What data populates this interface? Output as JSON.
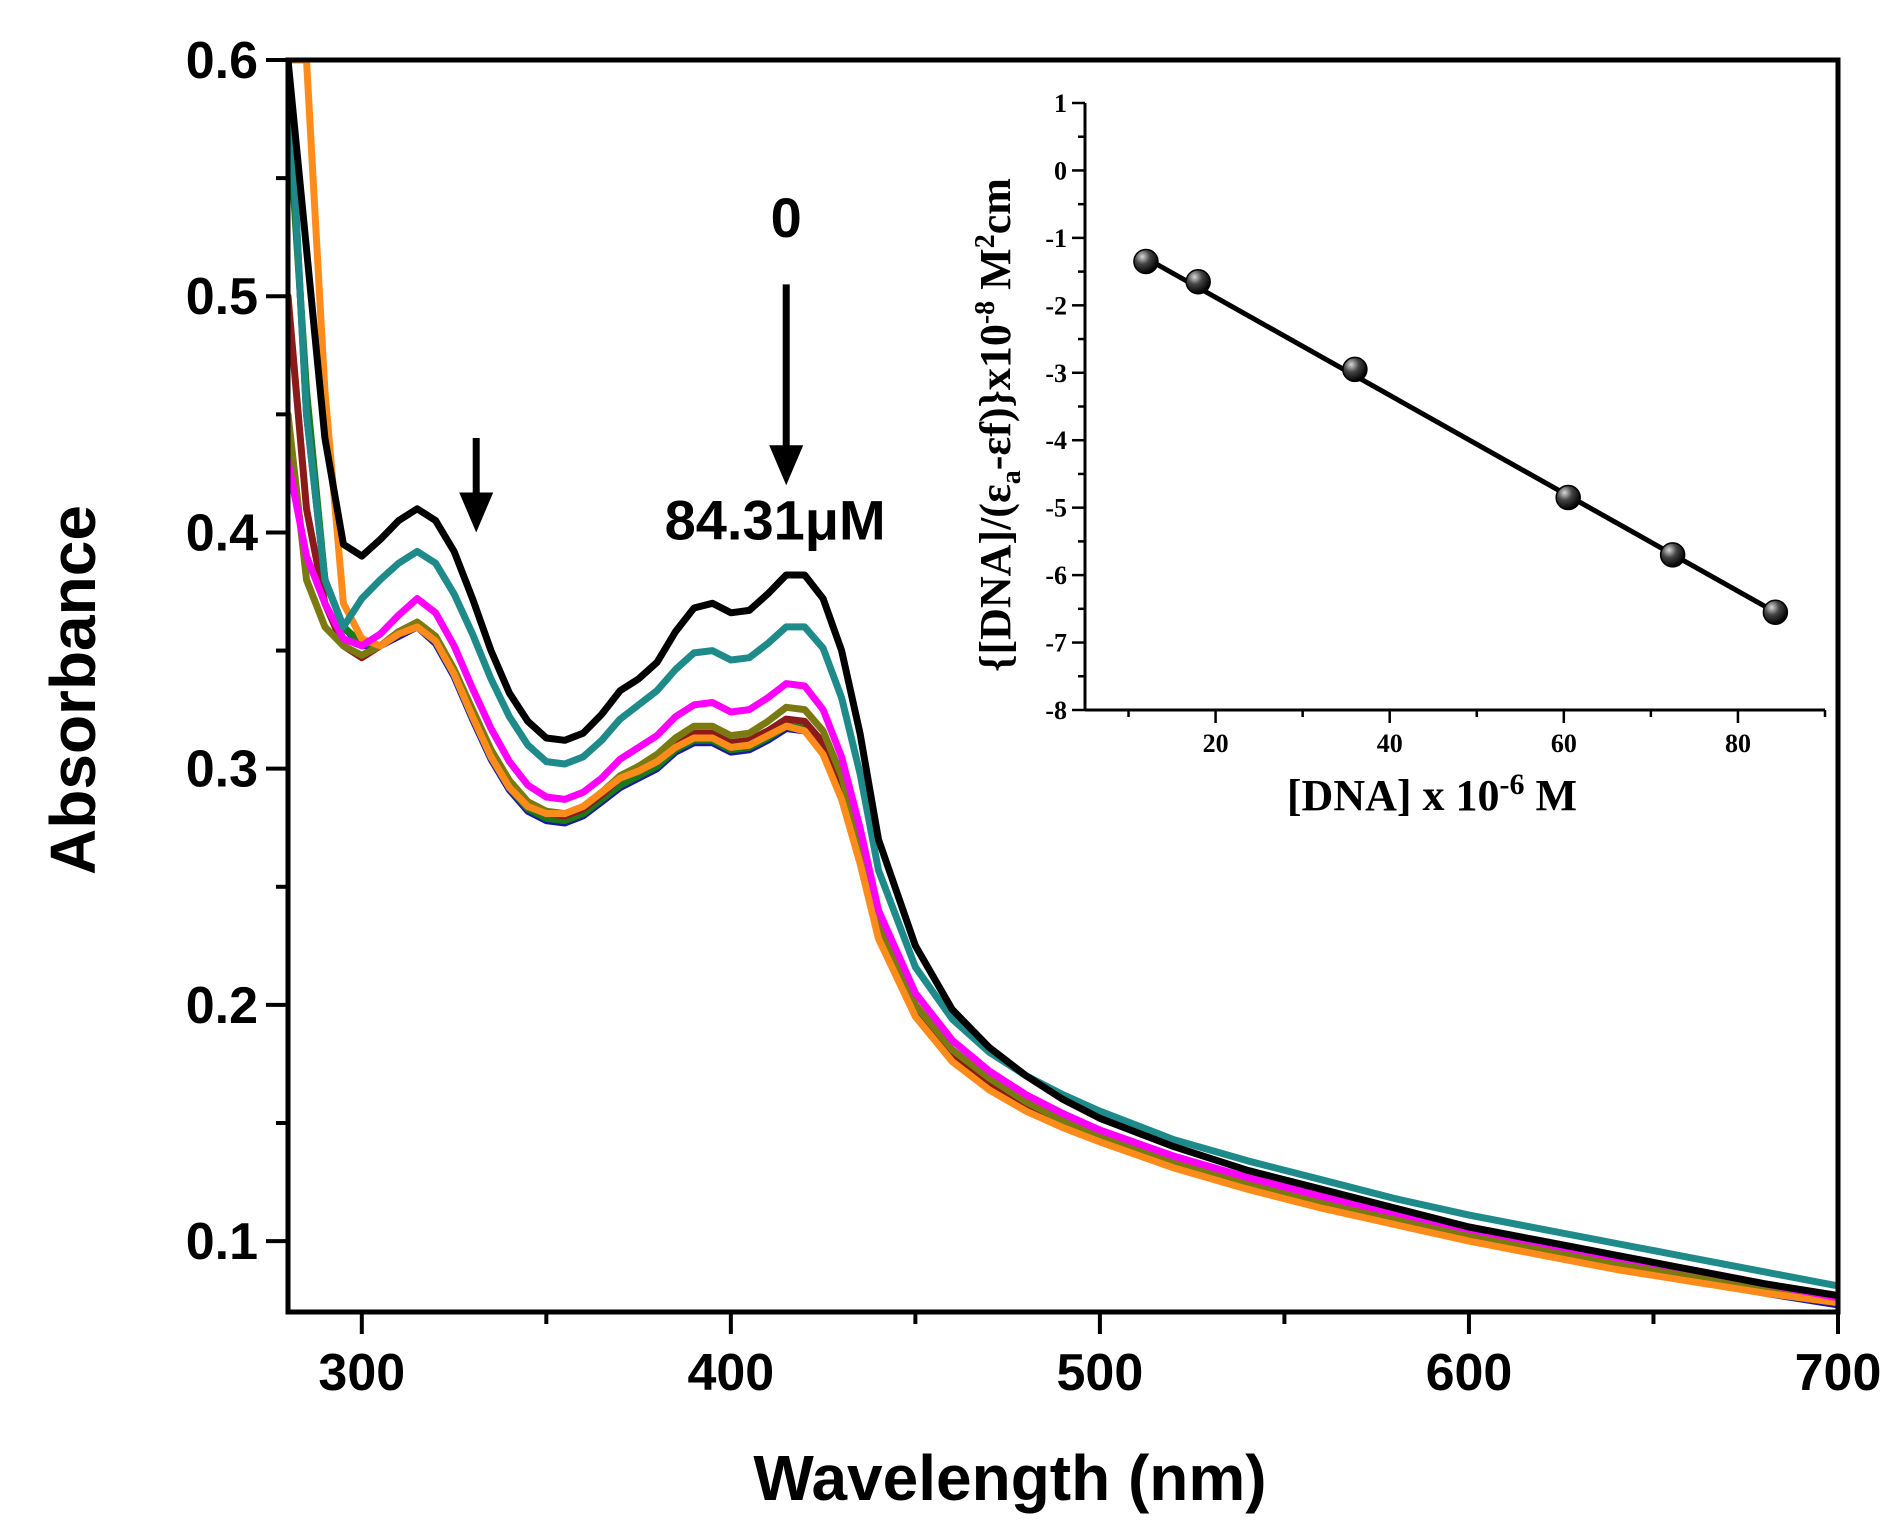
{
  "chart_data": [
    {
      "type": "line",
      "title": "",
      "xlabel": "Wavelength (nm)",
      "ylabel": "Absorbance",
      "xlim": [
        280,
        700
      ],
      "ylim": [
        0.07,
        0.6
      ],
      "xticks": [
        "300",
        "400",
        "500",
        "600",
        "700"
      ],
      "yticks": [
        "0.1",
        "0.2",
        "0.3",
        "0.4",
        "0.5",
        "0.6"
      ],
      "grid": false,
      "x": [
        280,
        285,
        290,
        295,
        300,
        305,
        310,
        315,
        320,
        325,
        330,
        335,
        340,
        345,
        350,
        355,
        360,
        365,
        370,
        375,
        380,
        385,
        390,
        395,
        400,
        405,
        410,
        415,
        420,
        425,
        430,
        435,
        440,
        450,
        460,
        470,
        480,
        490,
        500,
        520,
        540,
        560,
        580,
        600,
        620,
        640,
        660,
        680,
        700
      ],
      "series": [
        {
          "name": "0 μM",
          "color": "#000000",
          "values": [
            0.6,
            0.52,
            0.44,
            0.395,
            0.39,
            0.397,
            0.405,
            0.41,
            0.405,
            0.392,
            0.372,
            0.35,
            0.332,
            0.32,
            0.313,
            0.312,
            0.315,
            0.323,
            0.333,
            0.338,
            0.345,
            0.358,
            0.368,
            0.37,
            0.366,
            0.367,
            0.374,
            0.382,
            0.382,
            0.372,
            0.35,
            0.315,
            0.27,
            0.225,
            0.198,
            0.182,
            0.17,
            0.16,
            0.152,
            0.14,
            0.13,
            0.122,
            0.114,
            0.106,
            0.1,
            0.094,
            0.088,
            0.082,
            0.077
          ]
        },
        {
          "name": "teal",
          "color": "#1f8a8a",
          "values": [
            0.6,
            0.45,
            0.38,
            0.36,
            0.372,
            0.38,
            0.387,
            0.392,
            0.387,
            0.374,
            0.357,
            0.338,
            0.322,
            0.31,
            0.303,
            0.302,
            0.305,
            0.312,
            0.321,
            0.327,
            0.333,
            0.342,
            0.349,
            0.35,
            0.346,
            0.347,
            0.353,
            0.36,
            0.36,
            0.351,
            0.33,
            0.298,
            0.257,
            0.216,
            0.194,
            0.18,
            0.17,
            0.162,
            0.155,
            0.143,
            0.134,
            0.126,
            0.118,
            0.111,
            0.105,
            0.099,
            0.093,
            0.087,
            0.081
          ]
        },
        {
          "name": "magenta",
          "color": "#ff00ff",
          "values": [
            0.43,
            0.39,
            0.37,
            0.355,
            0.352,
            0.357,
            0.365,
            0.372,
            0.366,
            0.352,
            0.334,
            0.317,
            0.303,
            0.293,
            0.288,
            0.287,
            0.29,
            0.296,
            0.304,
            0.309,
            0.314,
            0.322,
            0.327,
            0.328,
            0.324,
            0.325,
            0.33,
            0.336,
            0.335,
            0.325,
            0.305,
            0.275,
            0.24,
            0.205,
            0.185,
            0.172,
            0.162,
            0.154,
            0.147,
            0.136,
            0.127,
            0.119,
            0.112,
            0.105,
            0.099,
            0.093,
            0.088,
            0.082,
            0.076
          ]
        },
        {
          "name": "olive",
          "color": "#7a7a10",
          "values": [
            0.45,
            0.38,
            0.36,
            0.352,
            0.348,
            0.352,
            0.358,
            0.362,
            0.356,
            0.342,
            0.325,
            0.308,
            0.295,
            0.286,
            0.282,
            0.281,
            0.284,
            0.29,
            0.297,
            0.301,
            0.306,
            0.313,
            0.318,
            0.318,
            0.314,
            0.315,
            0.32,
            0.326,
            0.325,
            0.316,
            0.297,
            0.268,
            0.235,
            0.2,
            0.181,
            0.169,
            0.159,
            0.151,
            0.145,
            0.134,
            0.125,
            0.117,
            0.11,
            0.103,
            0.097,
            0.091,
            0.086,
            0.08,
            0.075
          ]
        },
        {
          "name": "green",
          "color": "#1a7a1a",
          "values": [
            0.58,
            0.46,
            0.38,
            0.36,
            0.353,
            0.352,
            0.357,
            0.36,
            0.354,
            0.34,
            0.322,
            0.305,
            0.292,
            0.283,
            0.279,
            0.278,
            0.281,
            0.287,
            0.293,
            0.297,
            0.301,
            0.308,
            0.312,
            0.312,
            0.308,
            0.309,
            0.313,
            0.318,
            0.317,
            0.308,
            0.29,
            0.262,
            0.23,
            0.197,
            0.178,
            0.166,
            0.157,
            0.15,
            0.144,
            0.133,
            0.124,
            0.116,
            0.109,
            0.102,
            0.096,
            0.09,
            0.085,
            0.079,
            0.074
          ]
        },
        {
          "name": "blue",
          "color": "#1a1aa0",
          "values": [
            0.6,
            0.45,
            0.38,
            0.36,
            0.352,
            0.352,
            0.356,
            0.36,
            0.353,
            0.339,
            0.321,
            0.304,
            0.291,
            0.282,
            0.278,
            0.277,
            0.28,
            0.286,
            0.292,
            0.296,
            0.3,
            0.307,
            0.311,
            0.311,
            0.307,
            0.308,
            0.312,
            0.317,
            0.316,
            0.307,
            0.289,
            0.261,
            0.229,
            0.196,
            0.177,
            0.165,
            0.156,
            0.149,
            0.143,
            0.132,
            0.123,
            0.115,
            0.108,
            0.101,
            0.095,
            0.089,
            0.084,
            0.078,
            0.073
          ]
        },
        {
          "name": "maroon",
          "color": "#8b1a1a",
          "values": [
            0.5,
            0.41,
            0.37,
            0.352,
            0.347,
            0.352,
            0.358,
            0.362,
            0.356,
            0.342,
            0.324,
            0.307,
            0.294,
            0.285,
            0.281,
            0.28,
            0.283,
            0.289,
            0.296,
            0.3,
            0.305,
            0.311,
            0.315,
            0.315,
            0.311,
            0.312,
            0.316,
            0.321,
            0.32,
            0.311,
            0.292,
            0.264,
            0.232,
            0.198,
            0.179,
            0.167,
            0.158,
            0.15,
            0.144,
            0.133,
            0.124,
            0.116,
            0.109,
            0.102,
            0.096,
            0.09,
            0.085,
            0.079,
            0.074
          ]
        },
        {
          "name": "84.31 μM",
          "color": "#ff8c1a",
          "values": [
            0.6,
            0.6,
            0.46,
            0.37,
            0.355,
            0.352,
            0.357,
            0.36,
            0.354,
            0.34,
            0.322,
            0.305,
            0.292,
            0.284,
            0.281,
            0.281,
            0.284,
            0.29,
            0.296,
            0.299,
            0.303,
            0.309,
            0.313,
            0.313,
            0.309,
            0.31,
            0.314,
            0.318,
            0.316,
            0.306,
            0.287,
            0.26,
            0.228,
            0.195,
            0.176,
            0.164,
            0.155,
            0.148,
            0.142,
            0.131,
            0.122,
            0.114,
            0.107,
            0.1,
            0.094,
            0.088,
            0.083,
            0.078,
            0.074
          ]
        }
      ],
      "annotations": [
        {
          "text": "0",
          "x": 415,
          "y": 0.525
        },
        {
          "text": "84.31μM",
          "x": 412,
          "y": 0.397
        },
        {
          "arrow": "down",
          "x": 415,
          "from": 0.505,
          "to": 0.42
        },
        {
          "arrow": "down",
          "x": 331,
          "from": 0.44,
          "to": 0.4
        }
      ]
    },
    {
      "type": "scatter",
      "subtype": "inset",
      "fit_line": true,
      "xlabel": "[DNA] x 10",
      "xlabel_sup": "-6",
      "xlabel_tail": " M",
      "ylabel_parts": [
        "{[DNA]/(ε",
        "a",
        "-εf)}x10",
        "-8",
        " M",
        "2",
        "cm"
      ],
      "xlim": [
        5,
        90
      ],
      "ylim": [
        -8,
        1
      ],
      "xticks": [
        "20",
        "40",
        "60",
        "80"
      ],
      "yticks": [
        "1",
        "0",
        "-1",
        "-2",
        "-3",
        "-4",
        "-5",
        "-6",
        "-7",
        "-8"
      ],
      "points": {
        "x": [
          12,
          18,
          36,
          60.5,
          72.5,
          84.3
        ],
        "y": [
          -1.35,
          -1.65,
          -2.95,
          -4.85,
          -5.7,
          -6.55
        ]
      },
      "fit": {
        "x": [
          12,
          84.3
        ],
        "y": [
          -1.3,
          -6.55
        ]
      }
    }
  ]
}
